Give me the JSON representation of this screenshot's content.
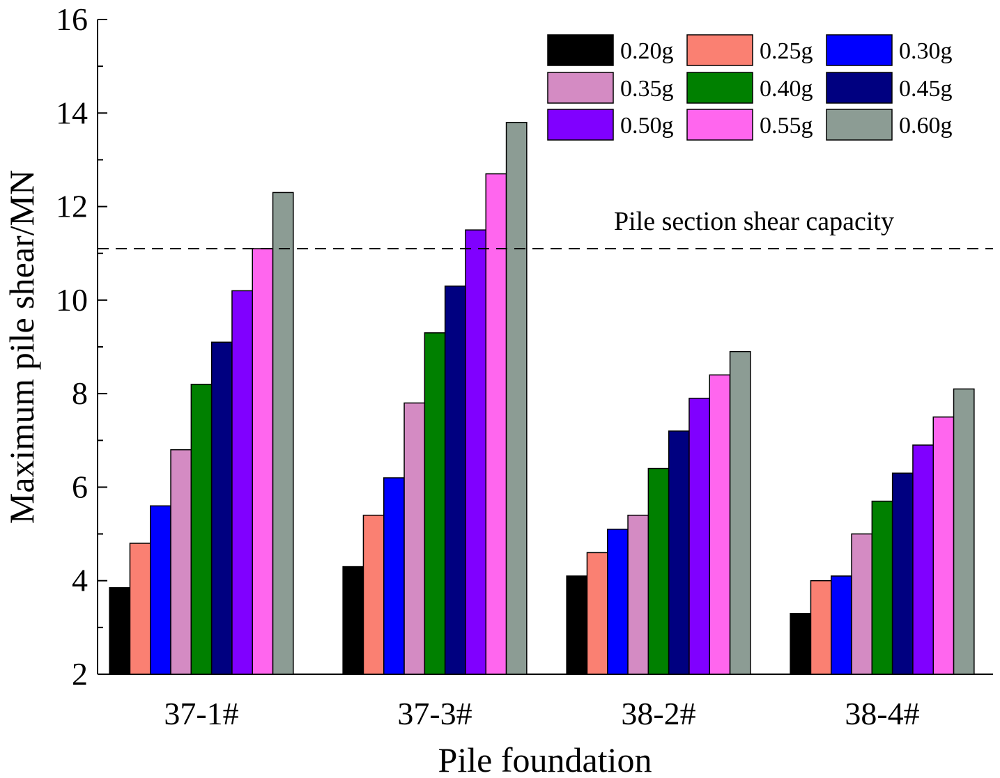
{
  "chart_data": {
    "type": "bar",
    "title": "",
    "xlabel": "Pile foundation",
    "ylabel": "Maximum pile shear/MN",
    "ylim": [
      2,
      16
    ],
    "yticks": [
      2,
      4,
      6,
      8,
      10,
      12,
      14,
      16
    ],
    "categories": [
      "37-1#",
      "37-3#",
      "38-2#",
      "38-4#"
    ],
    "legend_position": "top-right",
    "series": [
      {
        "name": "0.20g",
        "color": "#000000",
        "values": [
          3.85,
          4.3,
          4.1,
          3.3
        ]
      },
      {
        "name": "0.25g",
        "color": "#fa8072",
        "values": [
          4.8,
          5.4,
          4.6,
          4.0
        ]
      },
      {
        "name": "0.30g",
        "color": "#0000ff",
        "values": [
          5.6,
          6.2,
          5.1,
          4.1
        ]
      },
      {
        "name": "0.35g",
        "color": "#d48bc3",
        "values": [
          6.8,
          7.8,
          5.4,
          5.0
        ]
      },
      {
        "name": "0.40g",
        "color": "#008000",
        "values": [
          8.2,
          9.3,
          6.4,
          5.7
        ]
      },
      {
        "name": "0.45g",
        "color": "#000080",
        "values": [
          9.1,
          10.3,
          7.2,
          6.3
        ]
      },
      {
        "name": "0.50g",
        "color": "#8000ff",
        "values": [
          10.2,
          11.5,
          7.9,
          6.9
        ]
      },
      {
        "name": "0.55g",
        "color": "#ff66ee",
        "values": [
          11.1,
          12.7,
          8.4,
          7.5
        ]
      },
      {
        "name": "0.60g",
        "color": "#8c9c94",
        "values": [
          12.3,
          13.8,
          8.9,
          8.1
        ]
      }
    ],
    "reference_line": {
      "label": "Pile section shear capacity",
      "value": 11.1,
      "style": "dashed"
    }
  }
}
